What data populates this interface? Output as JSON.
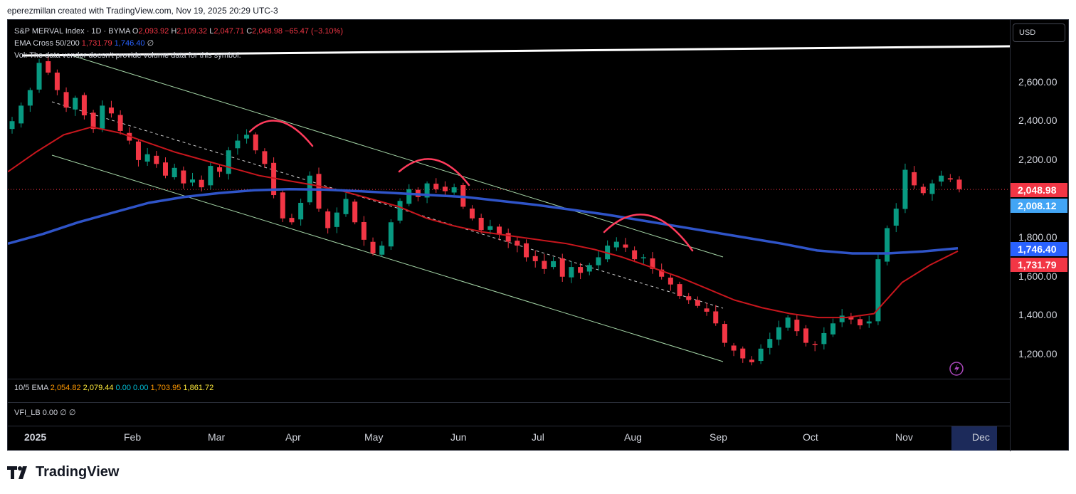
{
  "credit": "eperezmillan created with TradingView.com, Nov 19, 2025 20:29 UTC-3",
  "legend": {
    "symbol": "S&P MERVAL Index · 1D · BYMA",
    "o_label": "O",
    "o": "2,093.92",
    "h_label": "H",
    "h": "2,109.32",
    "l_label": "L",
    "l": "2,047.71",
    "c_label": "C",
    "c": "2,048.98",
    "change": "−65.47 (−3.10%)",
    "ema_label": "EMA Cross 50/200",
    "ema50": "1,731.79",
    "ema200": "1,746.40",
    "ema_eye": "∅",
    "vol": "Vol: The data vendor doesn't provide volume data for this symbol."
  },
  "subpanes": {
    "ema_label": "10/5 EMA",
    "ema_v1": "2,054.82",
    "ema_v2": "2,079.44",
    "ema_v3": "0.00",
    "ema_v4": "0.00",
    "ema_v5": "1,703.95",
    "ema_v6": "1,861.72",
    "vfi_label": "VFI_LB",
    "vfi_value": "0.00",
    "vfi_i1": "∅",
    "vfi_i2": "∅"
  },
  "currency": "USD",
  "logo_text": "TradingView",
  "colors": {
    "up": "#089981",
    "down": "#f23645",
    "ema50": "#c8161d",
    "ema200": "#2f54c8",
    "channel": "#a5d6a7",
    "annotation": "#ff3b5c",
    "priceLine": "#f23645"
  },
  "chart_data": {
    "type": "candlestick",
    "title": "S&P MERVAL Index · 1D · BYMA",
    "x_ticks": [
      "2025",
      "Feb",
      "Mar",
      "Apr",
      "May",
      "Jun",
      "Jul",
      "Aug",
      "Sep",
      "Oct",
      "Nov",
      "Dec"
    ],
    "y_ticks": [
      "2,600.00",
      "2,400.00",
      "2,200.00",
      "1,800.00",
      "1,600.00",
      "1,400.00",
      "1,200.00"
    ],
    "ylim": [
      1100,
      2800
    ],
    "price_tags": [
      {
        "label": "2,048.98",
        "value": 2048.98,
        "color": "#f23645"
      },
      {
        "label": "2,008.12",
        "value": 2008.12,
        "color": "#42a5f5"
      },
      {
        "label": "1,746.40",
        "value": 1746.4,
        "color": "#2962ff"
      },
      {
        "label": "1,731.79",
        "value": 1731.79,
        "color": "#f23645"
      }
    ],
    "close_series": [
      2400,
      2480,
      2560,
      2700,
      2650,
      2560,
      2470,
      2520,
      2430,
      2360,
      2480,
      2440,
      2350,
      2300,
      2200,
      2230,
      2180,
      2120,
      2160,
      2080,
      2100,
      2060,
      2170,
      2140,
      2250,
      2300,
      2330,
      2250,
      2180,
      2020,
      1900,
      1880,
      1980,
      2120,
      1950,
      1850,
      1930,
      2000,
      1880,
      1790,
      1720,
      1760,
      1880,
      1990,
      2050,
      2010,
      2080,
      2050,
      2040,
      2060,
      1960,
      1900,
      1840,
      1860,
      1820,
      1780,
      1760,
      1700,
      1680,
      1640,
      1680,
      1600,
      1650,
      1620,
      1660,
      1700,
      1760,
      1780,
      1750,
      1690,
      1700,
      1640,
      1600,
      1560,
      1500,
      1480,
      1450,
      1420,
      1360,
      1260,
      1220,
      1180,
      1160,
      1230,
      1280,
      1340,
      1390,
      1320,
      1260,
      1250,
      1310,
      1360,
      1400,
      1380,
      1350,
      1370,
      1690,
      1850,
      1950,
      2150,
      2070,
      2030,
      2080,
      2120,
      2100,
      2050
    ],
    "ema50_series": [
      2140,
      2240,
      2330,
      2370,
      2340,
      2290,
      2240,
      2200,
      2160,
      2120,
      2095,
      2070,
      2040,
      2000,
      1960,
      1900,
      1860,
      1830,
      1810,
      1790,
      1770,
      1740,
      1700,
      1650,
      1600,
      1540,
      1480,
      1440,
      1410,
      1390,
      1390,
      1410,
      1570,
      1660,
      1731.79
    ],
    "ema200_series": [
      1770,
      1820,
      1880,
      1930,
      1980,
      2010,
      2030,
      2045,
      2050,
      2048,
      2040,
      2030,
      2020,
      2010,
      1990,
      1970,
      1945,
      1920,
      1890,
      1860,
      1830,
      1800,
      1770,
      1735,
      1720,
      1720,
      1730,
      1746.4
    ]
  }
}
